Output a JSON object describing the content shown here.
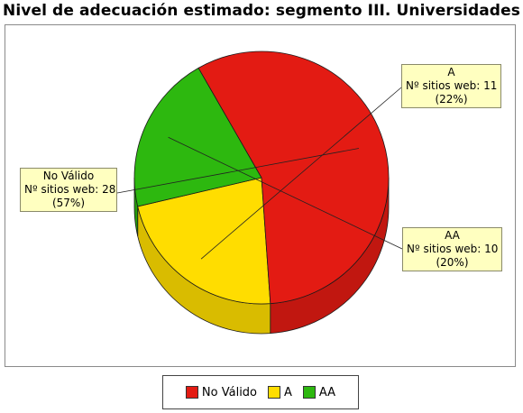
{
  "chart_data": {
    "type": "pie",
    "title": "Nivel de adecuación estimado: segmento III. Universidades",
    "slices": [
      {
        "name": "No Válido",
        "value": 28,
        "percent": "(57%)",
        "color": "#e31b13",
        "label_lines": [
          "No Válido",
          "Nº sitios web: 28",
          "(57%)"
        ]
      },
      {
        "name": "A",
        "value": 11,
        "percent": "(22%)",
        "color": "#ffdd00",
        "label_lines": [
          "A",
          "Nº sitios web: 11",
          "(22%)"
        ]
      },
      {
        "name": "AA",
        "value": 10,
        "percent": "(20%)",
        "color": "#2db80f",
        "label_lines": [
          "AA",
          "Nº sitios web: 10",
          "(20%)"
        ]
      }
    ],
    "legend_position": "bottom",
    "style": "3d"
  }
}
